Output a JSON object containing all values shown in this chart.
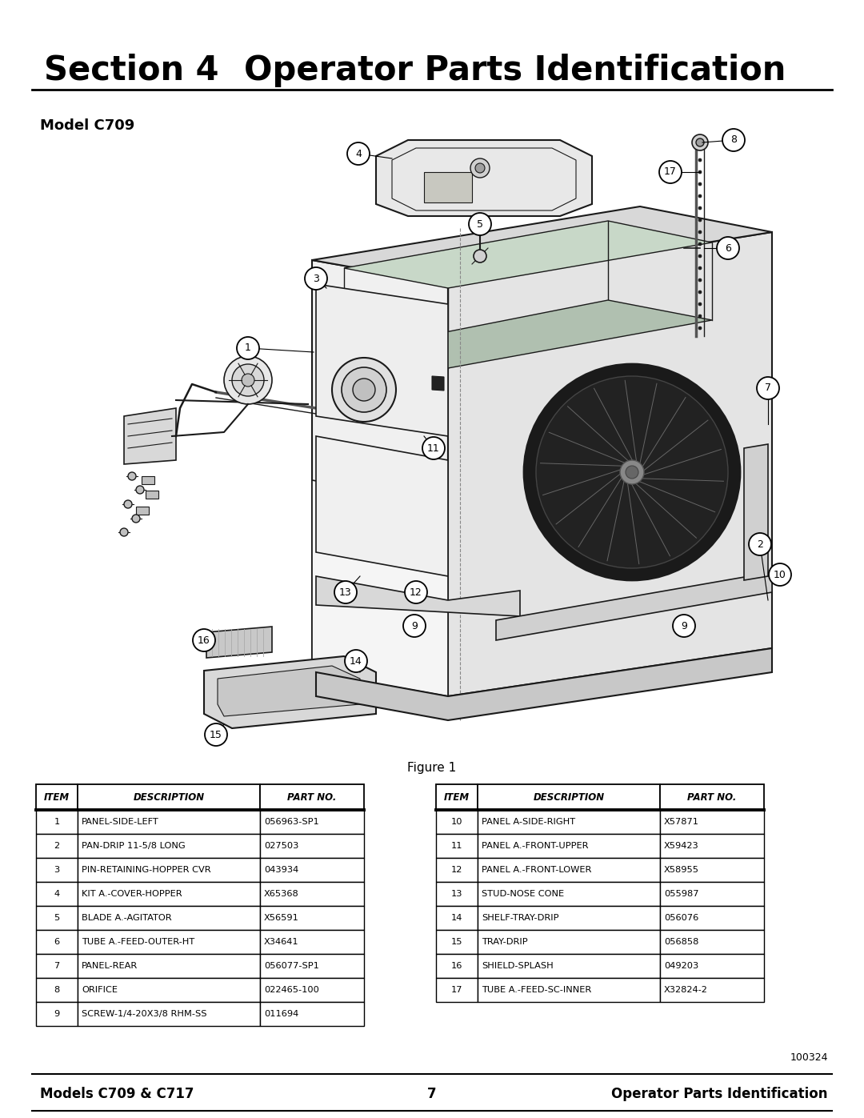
{
  "title_section": "Section 4",
  "title_main": "Operator Parts Identification",
  "model_label": "Model C709",
  "figure_label": "Figure 1",
  "page_number": "7",
  "doc_number": "100324",
  "footer_left": "Models C709 & C717",
  "footer_right": "Operator Parts Identification",
  "bg_color": "#ffffff",
  "table_left": {
    "headers": [
      "ITEM",
      "DESCRIPTION",
      "PART NO."
    ],
    "rows": [
      [
        "1",
        "PANEL-SIDE-LEFT",
        "056963-SP1"
      ],
      [
        "2",
        "PAN-DRIP 11-5/8 LONG",
        "027503"
      ],
      [
        "3",
        "PIN-RETAINING-HOPPER CVR",
        "043934"
      ],
      [
        "4",
        "KIT A.-COVER-HOPPER",
        "X65368"
      ],
      [
        "5",
        "BLADE A.-AGITATOR",
        "X56591"
      ],
      [
        "6",
        "TUBE A.-FEED-OUTER-HT",
        "X34641"
      ],
      [
        "7",
        "PANEL-REAR",
        "056077-SP1"
      ],
      [
        "8",
        "ORIFICE",
        "022465-100"
      ],
      [
        "9",
        "SCREW-1/4-20X3/8 RHM-SS",
        "011694"
      ]
    ]
  },
  "table_right": {
    "headers": [
      "ITEM",
      "DESCRIPTION",
      "PART NO."
    ],
    "rows": [
      [
        "10",
        "PANEL A-SIDE-RIGHT",
        "X57871"
      ],
      [
        "11",
        "PANEL A.-FRONT-UPPER",
        "X59423"
      ],
      [
        "12",
        "PANEL A.-FRONT-LOWER",
        "X58955"
      ],
      [
        "13",
        "STUD-NOSE CONE",
        "055987"
      ],
      [
        "14",
        "SHELF-TRAY-DRIP",
        "056076"
      ],
      [
        "15",
        "TRAY-DRIP",
        "056858"
      ],
      [
        "16",
        "SHIELD-SPLASH",
        "049203"
      ],
      [
        "17",
        "TUBE A.-FEED-SC-INNER",
        "X32824-2"
      ]
    ]
  }
}
